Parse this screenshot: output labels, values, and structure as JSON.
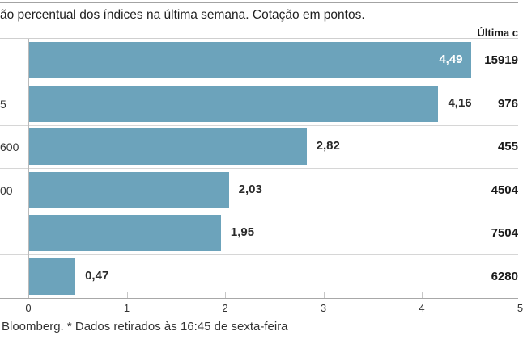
{
  "header": {
    "title_fragment": "ão percentual dos índices na última semana. Cotação em pontos.",
    "last_quote_column_label": "Última c"
  },
  "footer": {
    "source_note": "Bloomberg.  * Dados retirados às 16:45 de sexta-feira"
  },
  "colors": {
    "bar": "#6ca3bb",
    "bar_label_inside": "#ffffff",
    "text": "#333333",
    "separator": "#d6d6d6",
    "axis_line": "#a8a8a8"
  },
  "chart_data": {
    "type": "bar",
    "orientation": "horizontal",
    "title": "ão percentual dos índices na última semana. Cotação em pontos.",
    "note": "left category labels and right quote column are cropped by the screenshot edges",
    "categories": [
      "",
      "5",
      "600",
      "00",
      "",
      ""
    ],
    "values": [
      4.49,
      4.16,
      2.82,
      2.03,
      1.95,
      0.47
    ],
    "value_labels": [
      "4,49",
      "4,16",
      "2,82",
      "2,03",
      "1,95",
      "0,47"
    ],
    "value_label_inside": [
      true,
      false,
      false,
      false,
      false,
      false
    ],
    "last_quote_header": "Última c",
    "last_quotes": [
      "15919",
      "976",
      "455",
      "4504",
      "7504",
      "6280"
    ],
    "x_ticks": [
      0,
      1,
      2,
      3,
      4,
      5
    ],
    "x_tick_labels": [
      "0",
      "1",
      "2",
      "3",
      "4",
      "5"
    ],
    "xlim": [
      0,
      5
    ],
    "grid": false,
    "legend": null,
    "source": "Bloomberg.  * Dados retirados às 16:45 de sexta-feira"
  }
}
